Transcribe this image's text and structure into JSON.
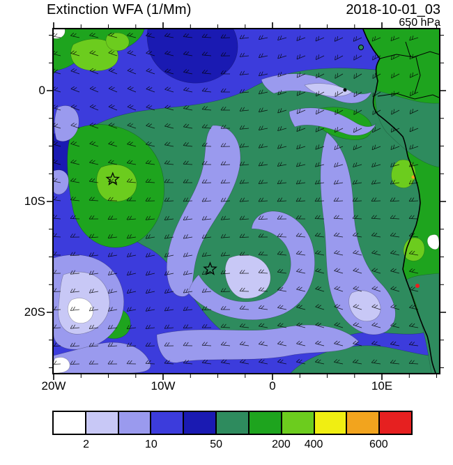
{
  "header": {
    "title": "Extinction WFA (1/Mm)",
    "datetime": "2018-10-01_03",
    "level": "650 hPa"
  },
  "chart_data": {
    "type": "heatmap",
    "title": "Extinction WFA (1/Mm)",
    "valid_time": "2018-10-01_03",
    "pressure_level": "650 hPa",
    "units": "1/Mm",
    "x_axis": {
      "ticks": [
        {
          "value": -20,
          "label": "20W"
        },
        {
          "value": -10,
          "label": "10W"
        },
        {
          "value": 0,
          "label": "0"
        },
        {
          "value": 10,
          "label": "10E"
        }
      ],
      "minor_step": 2.5,
      "range": [
        -20,
        15.2
      ]
    },
    "y_axis": {
      "ticks": [
        {
          "value": 0,
          "label": "0"
        },
        {
          "value": -10,
          "label": "10S"
        },
        {
          "value": -20,
          "label": "20S"
        }
      ],
      "minor_step": 2.5,
      "range": [
        -25.5,
        5.5
      ]
    },
    "colorbar": {
      "colors": [
        "#ffffff",
        "#c8c8f6",
        "#9a9aee",
        "#3c3cdc",
        "#1a1ab2",
        "#2e8b5e",
        "#1ea41e",
        "#6ccc1e",
        "#f0ee12",
        "#f2a41e",
        "#e62020"
      ],
      "labels": [
        {
          "text": "2",
          "boundary": 1
        },
        {
          "text": "10",
          "boundary": 3
        },
        {
          "text": "50",
          "boundary": 5
        },
        {
          "text": "200",
          "boundary": 7
        },
        {
          "text": "400",
          "boundary": 8
        },
        {
          "text": "600",
          "boundary": 10
        }
      ]
    },
    "markers": [
      {
        "name": "star-marker-north",
        "lon": -14.6,
        "lat": -8.0
      },
      {
        "name": "star-marker-south",
        "lon": -5.7,
        "lat": -16.1
      }
    ],
    "overlays": [
      "wind-barbs",
      "coastline",
      "country-borders"
    ]
  }
}
